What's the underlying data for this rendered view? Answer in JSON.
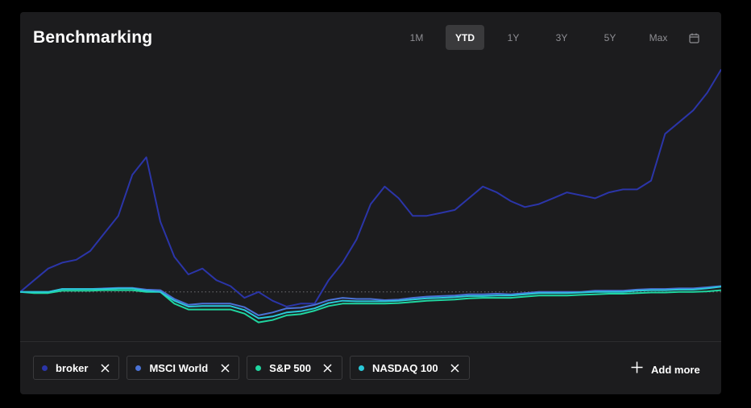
{
  "title": "Benchmarking",
  "ranges": [
    {
      "label": "1M",
      "active": false
    },
    {
      "label": "YTD",
      "active": true
    },
    {
      "label": "1Y",
      "active": false
    },
    {
      "label": "3Y",
      "active": false
    },
    {
      "label": "5Y",
      "active": false
    },
    {
      "label": "Max",
      "active": false
    }
  ],
  "calendar_icon": "calendar-icon",
  "colors": {
    "broker": "#2b35a8",
    "msci": "#4a72d6",
    "sp500": "#1fd6a0",
    "nasdaq": "#2ac8d8",
    "background": "#1c1c1e"
  },
  "chips": [
    {
      "label": "broker",
      "color": "#2b35a8"
    },
    {
      "label": "MSCI World",
      "color": "#4a72d6"
    },
    {
      "label": "S&P 500",
      "color": "#1fd6a0"
    },
    {
      "label": "NASDAQ 100",
      "color": "#2ac8d8"
    }
  ],
  "add_more": "Add more",
  "chart_data": {
    "type": "line",
    "baseline_dotted": true,
    "grid": false,
    "legend_placement": "bottom",
    "x": [
      0,
      5,
      10,
      15,
      20,
      25,
      30,
      35,
      40,
      45,
      50,
      55,
      60,
      65,
      70,
      75,
      80,
      85,
      90,
      95,
      100,
      105,
      110,
      115,
      120,
      125,
      130,
      135,
      140,
      145,
      150,
      155,
      160,
      165,
      170,
      175,
      180,
      185,
      190,
      195,
      200,
      205,
      210,
      215,
      220,
      225,
      230,
      235,
      240,
      245,
      250
    ],
    "series": [
      {
        "name": "broker",
        "values": [
          0,
          2,
          4,
          5,
          5.5,
          7,
          10,
          13,
          20,
          23,
          12,
          6,
          3,
          4,
          2,
          1,
          -1,
          0,
          -1.5,
          -2.5,
          -2,
          -2,
          2,
          5,
          9,
          15,
          18,
          16,
          13,
          13,
          13.5,
          14,
          16,
          18,
          17,
          15.5,
          14.5,
          15,
          16,
          17,
          16.5,
          16,
          17,
          17.5,
          17.5,
          19,
          27,
          29,
          31,
          34,
          38
        ]
      },
      {
        "name": "MSCI World",
        "values": [
          0,
          0,
          0,
          0.5,
          0.5,
          0.5,
          0.6,
          0.7,
          0.7,
          0.4,
          0.3,
          -1.2,
          -2.2,
          -2,
          -2,
          -2,
          -2.6,
          -4,
          -3.5,
          -2.8,
          -2.7,
          -2.2,
          -1.4,
          -1,
          -1.2,
          -1.2,
          -1.4,
          -1.3,
          -1,
          -0.8,
          -0.7,
          -0.6,
          -0.4,
          -0.4,
          -0.3,
          -0.4,
          -0.2,
          0,
          0,
          0,
          0,
          0.2,
          0.2,
          0.2,
          0.4,
          0.5,
          0.5,
          0.6,
          0.6,
          0.8,
          1.0
        ]
      },
      {
        "name": "S&P 500",
        "values": [
          0,
          -0.2,
          -0.2,
          0.2,
          0.2,
          0.2,
          0.3,
          0.3,
          0.3,
          0,
          0,
          -2,
          -3,
          -3,
          -3,
          -3,
          -3.7,
          -5.2,
          -4.8,
          -4,
          -3.8,
          -3.2,
          -2.4,
          -2,
          -2,
          -2,
          -2,
          -1.9,
          -1.7,
          -1.5,
          -1.4,
          -1.3,
          -1.1,
          -1,
          -1,
          -1,
          -0.8,
          -0.6,
          -0.6,
          -0.6,
          -0.5,
          -0.4,
          -0.3,
          -0.3,
          -0.2,
          -0.1,
          -0.1,
          0,
          0,
          0.1,
          0.3
        ]
      },
      {
        "name": "NASDAQ 100",
        "values": [
          0,
          0,
          0,
          0.5,
          0.5,
          0.5,
          0.5,
          0.6,
          0.6,
          0.2,
          0,
          -1.5,
          -2.5,
          -2.4,
          -2.4,
          -2.4,
          -3.1,
          -4.5,
          -4.2,
          -3.5,
          -3.3,
          -2.8,
          -1.9,
          -1.5,
          -1.6,
          -1.6,
          -1.6,
          -1.5,
          -1.3,
          -1.1,
          -1,
          -0.9,
          -0.7,
          -0.7,
          -0.6,
          -0.6,
          -0.4,
          -0.2,
          -0.2,
          -0.2,
          -0.1,
          0,
          0,
          0,
          0.2,
          0.3,
          0.3,
          0.4,
          0.4,
          0.6,
          0.9
        ]
      }
    ],
    "ylim": [
      -8,
      39
    ]
  }
}
